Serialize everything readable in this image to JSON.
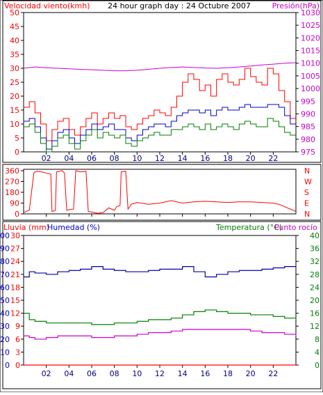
{
  "chart_data": [
    {
      "type": "line",
      "title": "24 hour graph day : 24 Octubre 2007",
      "left_axis_label": "Velocidad viento(kmh)",
      "right_axis_label": "Presión(hPa)",
      "x_ticks": [
        "02",
        "04",
        "06",
        "08",
        "10",
        "12",
        "14",
        "16",
        "18",
        "20",
        "22"
      ],
      "left_ylim": [
        0,
        50
      ],
      "left_ticks": [
        0,
        5,
        10,
        15,
        20,
        25,
        30,
        35,
        40,
        45,
        50
      ],
      "right_ylim": [
        975,
        1030
      ],
      "right_ticks": [
        975,
        980,
        985,
        990,
        995,
        1000,
        1005,
        1010,
        1015,
        1020,
        1025,
        1030
      ],
      "x_range_hours": [
        0,
        24
      ],
      "series": [
        {
          "color": "#ff0000",
          "axis": "left",
          "x": [
            0,
            0.5,
            1,
            1.5,
            2,
            2.5,
            3,
            3.5,
            4,
            4.5,
            5,
            5.5,
            6,
            6.5,
            7,
            7.5,
            8,
            8.5,
            9,
            9.5,
            10,
            10.5,
            11,
            11.5,
            12,
            12.5,
            13,
            13.5,
            14,
            14.5,
            15,
            15.5,
            16,
            16.5,
            17,
            17.5,
            18,
            18.5,
            19,
            19.5,
            20,
            20.5,
            21,
            21.5,
            22,
            22.5,
            23,
            23.5
          ],
          "values": [
            16,
            18,
            14,
            10,
            4,
            8,
            11,
            12,
            8,
            6,
            9,
            12,
            14,
            10,
            12,
            14,
            12,
            13,
            9,
            8,
            10,
            12,
            13,
            15,
            14,
            13,
            16,
            20,
            25,
            28,
            26,
            22,
            24,
            20,
            26,
            28,
            25,
            24,
            26,
            30,
            27,
            25,
            24,
            30,
            28,
            22,
            18,
            12
          ]
        },
        {
          "color": "#0000cc",
          "axis": "left",
          "x": [
            0,
            0.5,
            1,
            1.5,
            2,
            2.5,
            3,
            3.5,
            4,
            4.5,
            5,
            5.5,
            6,
            6.5,
            7,
            7.5,
            8,
            8.5,
            9,
            9.5,
            10,
            10.5,
            11,
            11.5,
            12,
            12.5,
            13,
            13.5,
            14,
            14.5,
            15,
            15.5,
            16,
            16.5,
            17,
            17.5,
            18,
            18.5,
            19,
            19.5,
            20,
            20.5,
            21,
            21.5,
            22,
            22.5,
            23,
            23.5
          ],
          "values": [
            11,
            12,
            9,
            5,
            1,
            4,
            7,
            8,
            5,
            3,
            6,
            8,
            10,
            8,
            9,
            10,
            8,
            8,
            5,
            4,
            6,
            8,
            9,
            10,
            10,
            9,
            11,
            13,
            14,
            15,
            15,
            14,
            15,
            13,
            15,
            16,
            15,
            15,
            16,
            17,
            16,
            16,
            16,
            17,
            17,
            16,
            13,
            10
          ]
        },
        {
          "color": "#008000",
          "axis": "left",
          "x": [
            0,
            0.5,
            1,
            1.5,
            2,
            2.5,
            3,
            3.5,
            4,
            4.5,
            5,
            5.5,
            6,
            6.5,
            7,
            7.5,
            8,
            8.5,
            9,
            9.5,
            10,
            10.5,
            11,
            11.5,
            12,
            12.5,
            13,
            13.5,
            14,
            14.5,
            15,
            15.5,
            16,
            16.5,
            17,
            17.5,
            18,
            18.5,
            19,
            19.5,
            20,
            20.5,
            21,
            21.5,
            22,
            22.5,
            23,
            23.5
          ],
          "values": [
            9,
            10,
            7,
            3,
            0,
            2,
            5,
            6,
            3,
            1,
            4,
            6,
            8,
            5,
            7,
            6,
            5,
            6,
            3,
            2,
            4,
            5,
            6,
            7,
            6,
            6,
            8,
            8,
            9,
            10,
            9,
            8,
            10,
            8,
            9,
            10,
            9,
            8,
            10,
            11,
            10,
            9,
            9,
            12,
            11,
            9,
            7,
            6
          ]
        },
        {
          "color": "#cc00cc",
          "axis": "right",
          "x": [
            0,
            1,
            2,
            3,
            4,
            5,
            6,
            7,
            8,
            9,
            10,
            11,
            12,
            13,
            14,
            15,
            16,
            17,
            18,
            19,
            20,
            21,
            22,
            23,
            24
          ],
          "values": [
            1008,
            1008.5,
            1008.2,
            1008,
            1007.8,
            1007.6,
            1007.4,
            1007.2,
            1007,
            1007,
            1007.2,
            1007.6,
            1008,
            1008.3,
            1008.5,
            1008.3,
            1008.1,
            1008,
            1008.2,
            1008.5,
            1008.9,
            1009.3,
            1009.6,
            1010,
            1010.2
          ]
        }
      ]
    },
    {
      "type": "line",
      "left_ticks": [
        0,
        90,
        180,
        270,
        360
      ],
      "left_ylim": [
        0,
        360
      ],
      "right_labels": [
        "N",
        "W",
        "S",
        "E",
        "N"
      ],
      "x_range_hours": [
        0,
        24
      ],
      "series": [
        {
          "color": "#ff0000",
          "x": [
            0,
            0.2,
            0.5,
            0.9,
            1.0,
            1.2,
            1.6,
            2.0,
            2.4,
            2.5,
            2.8,
            2.9,
            3.4,
            3.6,
            3.8,
            4.0,
            4.4,
            4.6,
            5.0,
            5.5,
            5.7,
            6.0,
            6.5,
            7.0,
            7.5,
            8.0,
            8.2,
            8.5,
            8.6,
            9.0,
            9.2,
            9.5,
            10,
            11,
            12,
            13,
            14,
            15,
            16,
            17,
            18,
            19,
            20,
            21,
            22,
            22.5,
            23,
            23.5,
            24
          ],
          "values": [
            10,
            20,
            30,
            340,
            350,
            355,
            350,
            340,
            330,
            20,
            30,
            350,
            360,
            340,
            30,
            35,
            40,
            360,
            350,
            355,
            20,
            15,
            5,
            10,
            50,
            30,
            60,
            70,
            350,
            355,
            40,
            80,
            95,
            80,
            90,
            110,
            90,
            100,
            105,
            100,
            95,
            100,
            100,
            95,
            90,
            80,
            60,
            40,
            20
          ]
        }
      ]
    },
    {
      "type": "line",
      "left_axis_label": "Lluvia (mm)",
      "left_axis_label2": "Humedad (%)",
      "right_axis_label": "Temperatura (°C)",
      "right_axis_label2": "Punto rocío",
      "rain_ticks": [
        0,
        3,
        6,
        9,
        12,
        15,
        18,
        21,
        24,
        27,
        30
      ],
      "hum_ticks": [
        0,
        10,
        20,
        30,
        40,
        50,
        60,
        70,
        80,
        90,
        100
      ],
      "temp_ticks": [
        0,
        4,
        8,
        12,
        16,
        20,
        24,
        28,
        32,
        36,
        40
      ],
      "x_range_hours": [
        0,
        24
      ],
      "series": [
        {
          "name_hint": "humidity",
          "color": "#0000aa",
          "axis": "humidity",
          "x": [
            0,
            0.5,
            1,
            2,
            3,
            4,
            5,
            6,
            7,
            8,
            9,
            10,
            11,
            12,
            13,
            14,
            15,
            16,
            17,
            18,
            19,
            20,
            21,
            22,
            23,
            24
          ],
          "values": [
            68,
            72,
            71,
            70,
            72,
            73,
            74,
            76,
            74,
            73,
            72,
            72,
            73,
            74,
            74,
            76,
            72,
            68,
            70,
            72,
            73,
            73,
            74,
            75,
            76,
            76
          ]
        },
        {
          "name_hint": "temperature",
          "color": "#008000",
          "axis": "temperature",
          "x": [
            0,
            0.5,
            1,
            2,
            3,
            4,
            5,
            6,
            7,
            8,
            9,
            10,
            11,
            12,
            13,
            14,
            15,
            16,
            17,
            18,
            19,
            20,
            21,
            22,
            23,
            24
          ],
          "values": [
            16,
            14,
            13.5,
            13,
            13,
            13,
            13,
            12.5,
            12.5,
            13,
            13,
            13.5,
            14,
            14,
            14.5,
            15.5,
            16.5,
            17,
            16.5,
            16,
            16,
            15.5,
            15.5,
            15,
            14.5,
            14
          ]
        },
        {
          "name_hint": "dew_point",
          "color": "#cc00cc",
          "axis": "temperature",
          "x": [
            0,
            0.5,
            1,
            2,
            3,
            4,
            5,
            6,
            7,
            8,
            9,
            10,
            11,
            12,
            13,
            14,
            15,
            16,
            17,
            18,
            19,
            20,
            21,
            22,
            23,
            24
          ],
          "values": [
            9,
            8.5,
            8,
            8.5,
            9,
            9,
            9,
            8.5,
            8.5,
            9,
            9,
            9.5,
            10,
            10,
            10.5,
            11,
            11,
            11,
            11,
            11,
            11,
            10.5,
            10,
            10,
            9.5,
            9
          ]
        },
        {
          "name_hint": "rain",
          "color": "#ff0000",
          "axis": "rain",
          "x": [
            0,
            24
          ],
          "values": [
            0,
            0
          ]
        }
      ]
    }
  ],
  "colors": {
    "wind_label": "#ff0000",
    "pressure_label": "#cc00cc",
    "title": "#000000",
    "direction_axis": "#ff0000",
    "rain_label": "#ff0000",
    "humidity_label": "#0000cc",
    "temperature_label": "#008000",
    "dewpoint_label": "#cc00cc"
  }
}
